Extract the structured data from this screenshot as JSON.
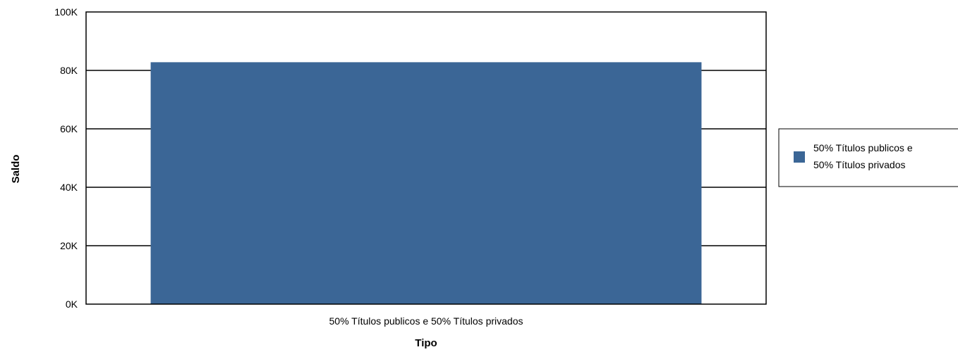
{
  "chart_data": {
    "type": "bar",
    "categories": [
      "50% Títulos publicos e 50% Títulos privados"
    ],
    "series": [
      {
        "name": "50% Títulos publicos e 50% Títulos privados",
        "values": [
          82800
        ]
      }
    ],
    "xlabel": "Tipo",
    "ylabel": "Saldo",
    "ylim": [
      0,
      100000
    ],
    "yticks": [
      0,
      20000,
      40000,
      60000,
      80000,
      100000
    ],
    "ytick_labels": [
      "0K",
      "20K",
      "40K",
      "60K",
      "80K",
      "100K"
    ],
    "grid": true,
    "legend": {
      "position": "right",
      "lines": [
        "50% Títulos publicos e",
        "50% Títulos privados"
      ]
    },
    "colors": {
      "bar": "#3b6696",
      "grid": "#000000"
    }
  }
}
